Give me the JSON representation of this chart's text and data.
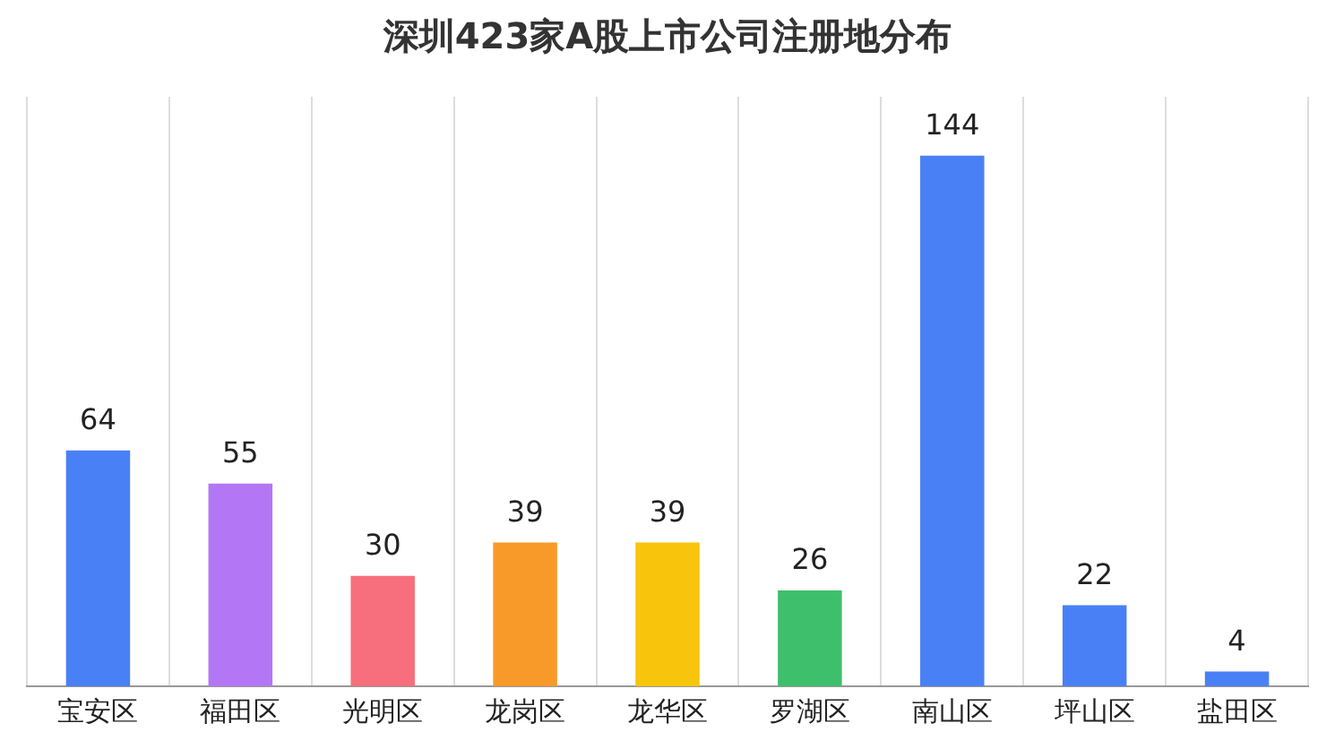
{
  "chart_data": {
    "type": "bar",
    "title": "深圳423家A股上市公司注册地分布",
    "categories": [
      "宝安区",
      "福田区",
      "光明区",
      "龙岗区",
      "龙华区",
      "罗湖区",
      "南山区",
      "坪山区",
      "盐田区"
    ],
    "values": [
      64,
      55,
      30,
      39,
      39,
      26,
      144,
      22,
      4
    ],
    "colors": [
      "#4a80f6",
      "#b377f5",
      "#f76f7c",
      "#f89a2a",
      "#f8c40c",
      "#3ebf6c",
      "#4a80f6",
      "#4a80f6",
      "#4a80f6"
    ],
    "data_labels": true,
    "grid": "x",
    "legend": false
  }
}
